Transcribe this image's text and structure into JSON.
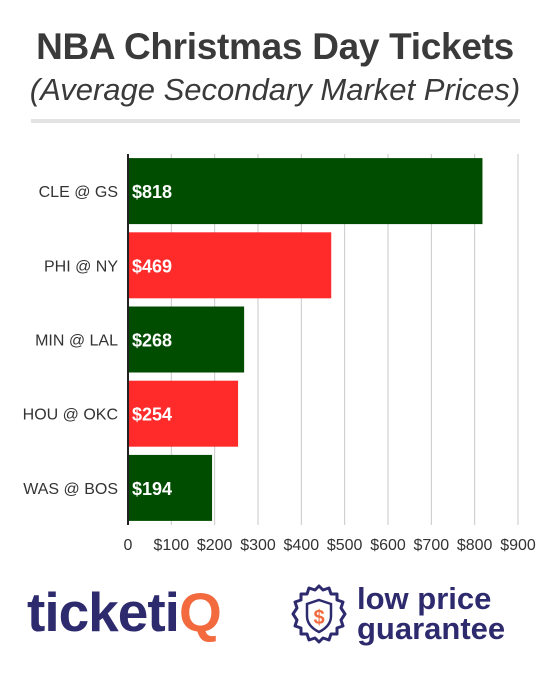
{
  "header": {
    "title": "NBA Christmas Day Tickets",
    "subtitle": "(Average Secondary Market Prices)"
  },
  "chart_data": {
    "type": "bar",
    "orientation": "horizontal",
    "categories": [
      "CLE @ GS",
      "PHI @ NY",
      "MIN @ LAL",
      "HOU @ OKC",
      "WAS @ BOS"
    ],
    "values": [
      818,
      469,
      268,
      254,
      194
    ],
    "value_labels": [
      "$818",
      "$469",
      "$268",
      "$254",
      "$194"
    ],
    "bar_colors": [
      "#004d00",
      "#ff2a2a",
      "#004d00",
      "#ff2a2a",
      "#004d00"
    ],
    "xlim": [
      0,
      900
    ],
    "x_ticks": [
      0,
      100,
      200,
      300,
      400,
      500,
      600,
      700,
      800,
      900
    ],
    "x_tick_labels": [
      "0",
      "$100",
      "$200",
      "$300",
      "$400",
      "$500",
      "$600",
      "$700",
      "$800",
      "$900"
    ],
    "grid": true
  },
  "footer": {
    "brand_left": "ticketiQ",
    "badge_symbol": "$",
    "brand_right_line1": "low price",
    "brand_right_line2": "guarantee",
    "brand_color": "#2e2a6e",
    "accent_color": "#f26a3d"
  }
}
